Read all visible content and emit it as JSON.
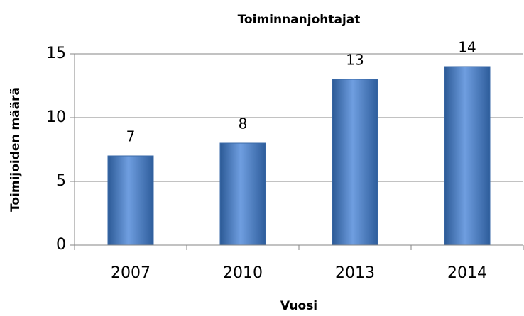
{
  "chart_data": {
    "type": "bar",
    "title": "Toiminnanjohtajat",
    "x_label": "Vuosi",
    "y_label": "Toimijoiden määrä",
    "categories": [
      "2007",
      "2010",
      "2013",
      "2014"
    ],
    "values": [
      7,
      8,
      13,
      14
    ],
    "color": "#4f81bd",
    "ylim": [
      0,
      15
    ],
    "yticks": [
      0,
      5,
      10,
      15
    ],
    "grid": true,
    "data_labels": true
  }
}
